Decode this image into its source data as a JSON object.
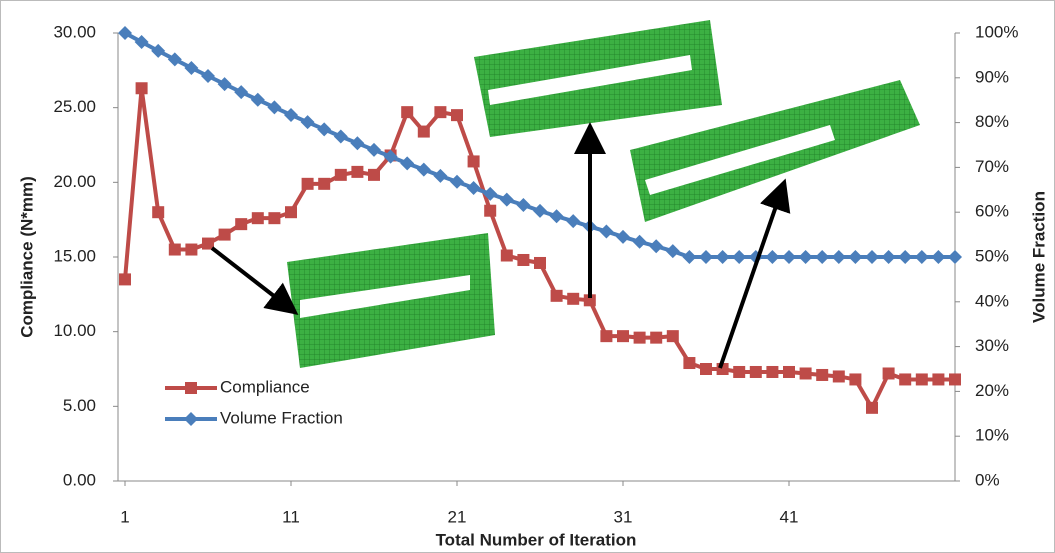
{
  "chart_data": {
    "type": "line",
    "x_label": "Total Number of Iteration",
    "y_label": "Compliance (N*mm)",
    "y2_label": "Volume Fraction",
    "x": [
      1,
      2,
      3,
      4,
      5,
      6,
      7,
      8,
      9,
      10,
      11,
      12,
      13,
      14,
      15,
      16,
      17,
      18,
      19,
      20,
      21,
      22,
      23,
      24,
      25,
      26,
      27,
      28,
      29,
      30,
      31,
      32,
      33,
      34,
      35,
      36,
      37,
      38,
      39,
      40,
      41,
      42,
      43,
      44,
      45,
      46,
      47,
      48,
      49,
      50,
      51
    ],
    "xlim": [
      1,
      51
    ],
    "xticks": [
      1,
      11,
      21,
      31,
      41
    ],
    "ylim": [
      0,
      30
    ],
    "yticks": [
      {
        "value": 0,
        "label": "0.00"
      },
      {
        "value": 5,
        "label": "5.00"
      },
      {
        "value": 10,
        "label": "10.00"
      },
      {
        "value": 15,
        "label": "15.00"
      },
      {
        "value": 20,
        "label": "20.00"
      },
      {
        "value": 25,
        "label": "25.00"
      },
      {
        "value": 30,
        "label": "30.00"
      }
    ],
    "y2lim": [
      0,
      100
    ],
    "y2ticks": [
      {
        "value": 0,
        "label": "0%"
      },
      {
        "value": 10,
        "label": "10%"
      },
      {
        "value": 20,
        "label": "20%"
      },
      {
        "value": 30,
        "label": "30%"
      },
      {
        "value": 40,
        "label": "40%"
      },
      {
        "value": 50,
        "label": "50%"
      },
      {
        "value": 60,
        "label": "60%"
      },
      {
        "value": 70,
        "label": "70%"
      },
      {
        "value": 80,
        "label": "80%"
      },
      {
        "value": 90,
        "label": "90%"
      },
      {
        "value": 100,
        "label": "100%"
      }
    ],
    "series": [
      {
        "name": "Compliance",
        "color": "#be4b48",
        "marker": "square",
        "values": [
          13.5,
          26.3,
          18.0,
          15.5,
          15.5,
          15.9,
          16.5,
          17.2,
          17.6,
          17.6,
          18.0,
          19.9,
          19.9,
          20.5,
          20.7,
          20.5,
          21.8,
          24.7,
          23.4,
          24.7,
          24.5,
          21.4,
          18.1,
          15.1,
          14.8,
          14.6,
          12.4,
          12.2,
          12.1,
          9.7,
          9.7,
          9.6,
          9.6,
          9.7,
          7.9,
          7.5,
          7.5,
          7.3,
          7.3,
          7.3,
          7.3,
          7.2,
          7.1,
          7.0,
          6.8,
          4.9,
          7.2,
          6.8,
          6.8,
          6.8,
          6.8
        ]
      },
      {
        "name": "Volume Fraction",
        "color": "#4a7ebb",
        "marker": "diamond",
        "axis": "y2",
        "values": [
          100,
          98,
          96,
          94.1,
          92.2,
          90.4,
          88.6,
          86.8,
          85.1,
          83.4,
          81.7,
          80.1,
          78.5,
          76.9,
          75.4,
          73.9,
          72.4,
          70.9,
          69.5,
          68.1,
          66.8,
          65.4,
          64.1,
          62.8,
          61.6,
          60.3,
          59.1,
          58.0,
          56.8,
          55.7,
          54.5,
          53.4,
          52.4,
          51.3,
          50,
          50,
          50,
          50,
          50,
          50,
          50,
          50,
          50,
          50,
          50,
          50,
          50,
          50,
          50,
          50,
          50
        ]
      }
    ],
    "legend": "lower-left"
  }
}
